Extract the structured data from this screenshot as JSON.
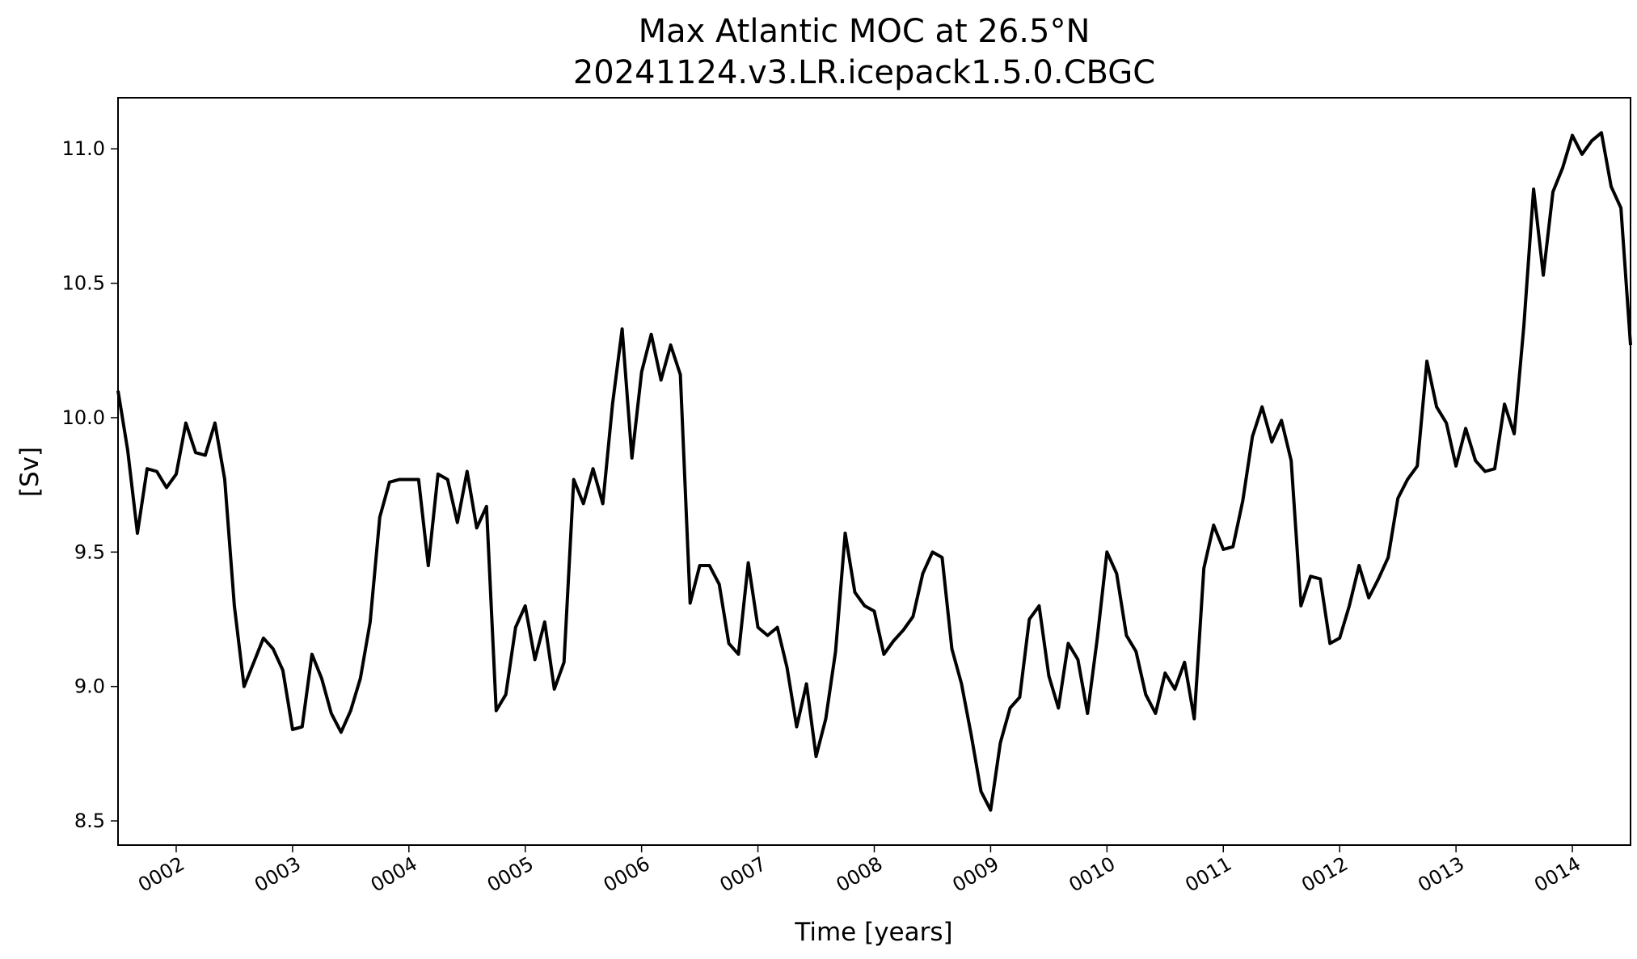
{
  "chart_data": {
    "type": "line",
    "title": "Max Atlantic MOC at 26.5°N",
    "subtitle": "20241124.v3.LR.icepack1.5.0.CBGC",
    "xlabel": "Time [years]",
    "ylabel": "[Sv]",
    "xlim": [
      1.5,
      14.5
    ],
    "ylim": [
      8.41,
      11.19
    ],
    "xticks": [
      {
        "value": 2,
        "label": "0002"
      },
      {
        "value": 3,
        "label": "0003"
      },
      {
        "value": 4,
        "label": "0004"
      },
      {
        "value": 5,
        "label": "0005"
      },
      {
        "value": 6,
        "label": "0006"
      },
      {
        "value": 7,
        "label": "0007"
      },
      {
        "value": 8,
        "label": "0008"
      },
      {
        "value": 9,
        "label": "0009"
      },
      {
        "value": 10,
        "label": "0010"
      },
      {
        "value": 11,
        "label": "0011"
      },
      {
        "value": 12,
        "label": "0012"
      },
      {
        "value": 13,
        "label": "0013"
      },
      {
        "value": 14,
        "label": "0014"
      }
    ],
    "yticks": [
      {
        "value": 8.5,
        "label": "8.5"
      },
      {
        "value": 9.0,
        "label": "9.0"
      },
      {
        "value": 9.5,
        "label": "9.5"
      },
      {
        "value": 10.0,
        "label": "10.0"
      },
      {
        "value": 10.5,
        "label": "10.5"
      },
      {
        "value": 11.0,
        "label": "11.0"
      }
    ],
    "grid": false,
    "series": [
      {
        "color": "#000000",
        "x": [
          1.5,
          1.583,
          1.667,
          1.75,
          1.833,
          1.917,
          2.0,
          2.083,
          2.167,
          2.25,
          2.333,
          2.417,
          2.5,
          2.583,
          2.667,
          2.75,
          2.833,
          2.917,
          3.0,
          3.083,
          3.167,
          3.25,
          3.333,
          3.417,
          3.5,
          3.583,
          3.667,
          3.75,
          3.833,
          3.917,
          4.0,
          4.083,
          4.167,
          4.25,
          4.333,
          4.417,
          4.5,
          4.583,
          4.667,
          4.75,
          4.833,
          4.917,
          5.0,
          5.083,
          5.167,
          5.25,
          5.333,
          5.417,
          5.5,
          5.583,
          5.667,
          5.75,
          5.833,
          5.917,
          6.0,
          6.083,
          6.167,
          6.25,
          6.333,
          6.417,
          6.5,
          6.583,
          6.667,
          6.75,
          6.833,
          6.917,
          7.0,
          7.083,
          7.167,
          7.25,
          7.333,
          7.417,
          7.5,
          7.583,
          7.667,
          7.75,
          7.833,
          7.917,
          8.0,
          8.083,
          8.167,
          8.25,
          8.333,
          8.417,
          8.5,
          8.583,
          8.667,
          8.75,
          8.833,
          8.917,
          9.0,
          9.083,
          9.167,
          9.25,
          9.333,
          9.417,
          9.5,
          9.583,
          9.667,
          9.75,
          9.833,
          9.917,
          10.0,
          10.083,
          10.167,
          10.25,
          10.333,
          10.417,
          10.5,
          10.583,
          10.667,
          10.75,
          10.833,
          10.917,
          11.0,
          11.083,
          11.167,
          11.25,
          11.333,
          11.417,
          11.5,
          11.583,
          11.667,
          11.75,
          11.833,
          11.917,
          12.0,
          12.083,
          12.167,
          12.25,
          12.333,
          12.417,
          12.5,
          12.583,
          12.667,
          12.75,
          12.833,
          12.917,
          13.0,
          13.083,
          13.167,
          13.25,
          13.333,
          13.417,
          13.5,
          13.583,
          13.667,
          13.75,
          13.833,
          13.917,
          14.0,
          14.083,
          14.167,
          14.25,
          14.333,
          14.417,
          14.5
        ],
        "y": [
          10.1,
          9.88,
          9.57,
          9.81,
          9.8,
          9.74,
          9.79,
          9.98,
          9.87,
          9.86,
          9.98,
          9.77,
          9.3,
          9.0,
          9.09,
          9.18,
          9.14,
          9.06,
          8.84,
          8.85,
          9.12,
          9.03,
          8.9,
          8.83,
          8.91,
          9.03,
          9.24,
          9.63,
          9.76,
          9.77,
          9.77,
          9.77,
          9.45,
          9.79,
          9.77,
          9.61,
          9.8,
          9.59,
          9.67,
          8.91,
          8.97,
          9.22,
          9.3,
          9.1,
          9.24,
          8.99,
          9.09,
          9.77,
          9.68,
          9.81,
          9.68,
          10.05,
          10.33,
          9.85,
          10.17,
          10.31,
          10.14,
          10.27,
          10.16,
          9.31,
          9.45,
          9.45,
          9.38,
          9.16,
          9.12,
          9.46,
          9.22,
          9.19,
          9.22,
          9.07,
          8.85,
          9.01,
          8.74,
          8.88,
          9.13,
          9.57,
          9.35,
          9.3,
          9.28,
          9.12,
          9.17,
          9.21,
          9.26,
          9.42,
          9.5,
          9.48,
          9.14,
          9.01,
          8.82,
          8.61,
          8.54,
          8.79,
          8.92,
          8.96,
          9.25,
          9.3,
          9.04,
          8.92,
          9.16,
          9.1,
          8.9,
          9.18,
          9.5,
          9.42,
          9.19,
          9.13,
          8.97,
          8.9,
          9.05,
          8.99,
          9.09,
          8.88,
          9.44,
          9.6,
          9.51,
          9.52,
          9.69,
          9.93,
          10.04,
          9.91,
          9.99,
          9.84,
          9.3,
          9.41,
          9.4,
          9.16,
          9.18,
          9.3,
          9.45,
          9.33,
          9.4,
          9.48,
          9.7,
          9.77,
          9.82,
          10.21,
          10.04,
          9.98,
          9.82,
          9.96,
          9.84,
          9.8,
          9.81,
          10.05,
          9.94,
          10.34,
          10.85,
          10.53,
          10.84,
          10.93,
          11.05,
          10.98,
          11.03,
          11.06,
          10.86,
          10.78,
          10.27
        ]
      }
    ]
  }
}
